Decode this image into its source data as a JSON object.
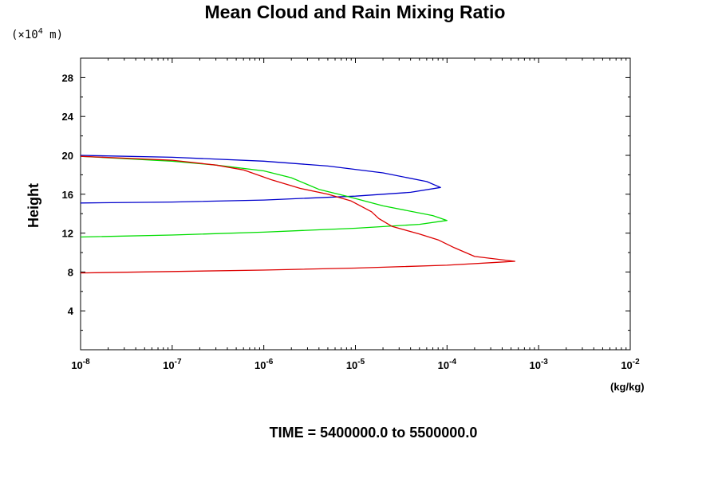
{
  "chart_data": {
    "type": "line",
    "title": "Mean Cloud and Rain Mixing Ratio",
    "ylabel": "Height",
    "y_scale_label": "(×10⁴ m)",
    "y_scale_label_parts": {
      "prefix": "(×10",
      "exp": "4",
      "suffix": " m)"
    },
    "xlabel": "(kg/kg)",
    "footer": "TIME = 5400000.0 to 5500000.0",
    "x_scale": "log",
    "xlim": [
      1e-08,
      0.01
    ],
    "ylim": [
      0,
      30
    ],
    "x_tick_labels": [
      {
        "base": "10",
        "exp": "-8"
      },
      {
        "base": "10",
        "exp": "-7"
      },
      {
        "base": "10",
        "exp": "-6"
      },
      {
        "base": "10",
        "exp": "-5"
      },
      {
        "base": "10",
        "exp": "-4"
      },
      {
        "base": "10",
        "exp": "-3"
      },
      {
        "base": "10",
        "exp": "-2"
      }
    ],
    "y_ticks": [
      "4",
      "8",
      "12",
      "16",
      "20",
      "24",
      "28"
    ],
    "grid": false,
    "series": [
      {
        "color": "#0000cc",
        "points": [
          [
            1e-08,
            15.1
          ],
          [
            1e-07,
            15.2
          ],
          [
            1e-06,
            15.4
          ],
          [
            1e-05,
            15.8
          ],
          [
            4e-05,
            16.2
          ],
          [
            8.5e-05,
            16.7
          ],
          [
            6e-05,
            17.3
          ],
          [
            2e-05,
            18.2
          ],
          [
            5e-06,
            18.9
          ],
          [
            1e-06,
            19.4
          ],
          [
            1e-07,
            19.8
          ],
          [
            1e-08,
            20.0
          ]
        ]
      },
      {
        "color": "#00dd00",
        "points": [
          [
            1e-08,
            11.6
          ],
          [
            1e-07,
            11.8
          ],
          [
            1e-06,
            12.1
          ],
          [
            1e-05,
            12.5
          ],
          [
            5e-05,
            12.9
          ],
          [
            0.0001,
            13.3
          ],
          [
            7e-05,
            13.8
          ],
          [
            2e-05,
            14.8
          ],
          [
            8e-06,
            15.8
          ],
          [
            4e-06,
            16.5
          ],
          [
            2e-06,
            17.7
          ],
          [
            1e-06,
            18.4
          ],
          [
            3e-07,
            19.0
          ],
          [
            1e-07,
            19.4
          ],
          [
            1e-08,
            19.9
          ]
        ]
      },
      {
        "color": "#dd0000",
        "points": [
          [
            1e-08,
            7.9
          ],
          [
            1e-07,
            8.05
          ],
          [
            1e-06,
            8.2
          ],
          [
            1e-05,
            8.4
          ],
          [
            0.0001,
            8.7
          ],
          [
            0.00055,
            9.1
          ],
          [
            0.0002,
            9.6
          ],
          [
            0.00012,
            10.5
          ],
          [
            8e-05,
            11.3
          ],
          [
            5e-05,
            11.9
          ],
          [
            2.5e-05,
            12.7
          ],
          [
            1.8e-05,
            13.5
          ],
          [
            1.5e-05,
            14.2
          ],
          [
            9e-06,
            15.3
          ],
          [
            5e-06,
            16.0
          ],
          [
            2.5e-06,
            16.6
          ],
          [
            1.2e-06,
            17.5
          ],
          [
            6e-07,
            18.5
          ],
          [
            3e-07,
            19.0
          ],
          [
            1e-07,
            19.5
          ],
          [
            1e-08,
            19.9
          ]
        ]
      }
    ]
  }
}
